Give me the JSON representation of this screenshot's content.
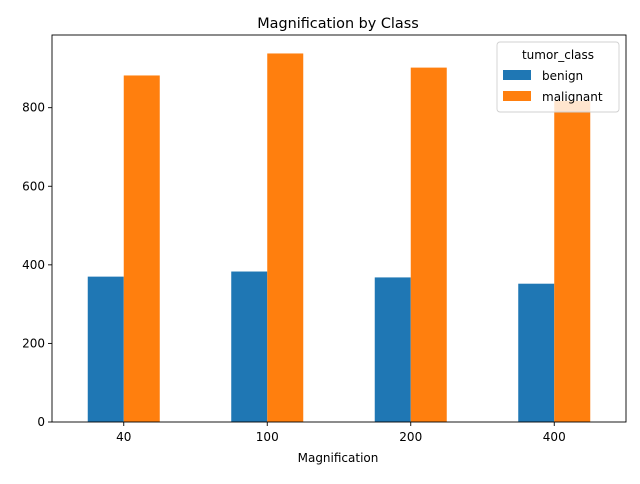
{
  "chart_data": {
    "type": "bar",
    "title": "Magnification by Class",
    "xlabel": "Magnification",
    "ylabel": "",
    "categories": [
      "40",
      "100",
      "200",
      "400"
    ],
    "series": [
      {
        "name": "benign",
        "values": [
          370,
          383,
          368,
          352
        ],
        "color": "#1f77b4"
      },
      {
        "name": "malignant",
        "values": [
          882,
          938,
          902,
          817
        ],
        "color": "#ff7f0e"
      }
    ],
    "ylim": [
      0,
      985
    ],
    "yticks": [
      0,
      200,
      400,
      600,
      800
    ],
    "legend": {
      "title": "tumor_class",
      "placement": "top-right"
    },
    "grid": false
  }
}
